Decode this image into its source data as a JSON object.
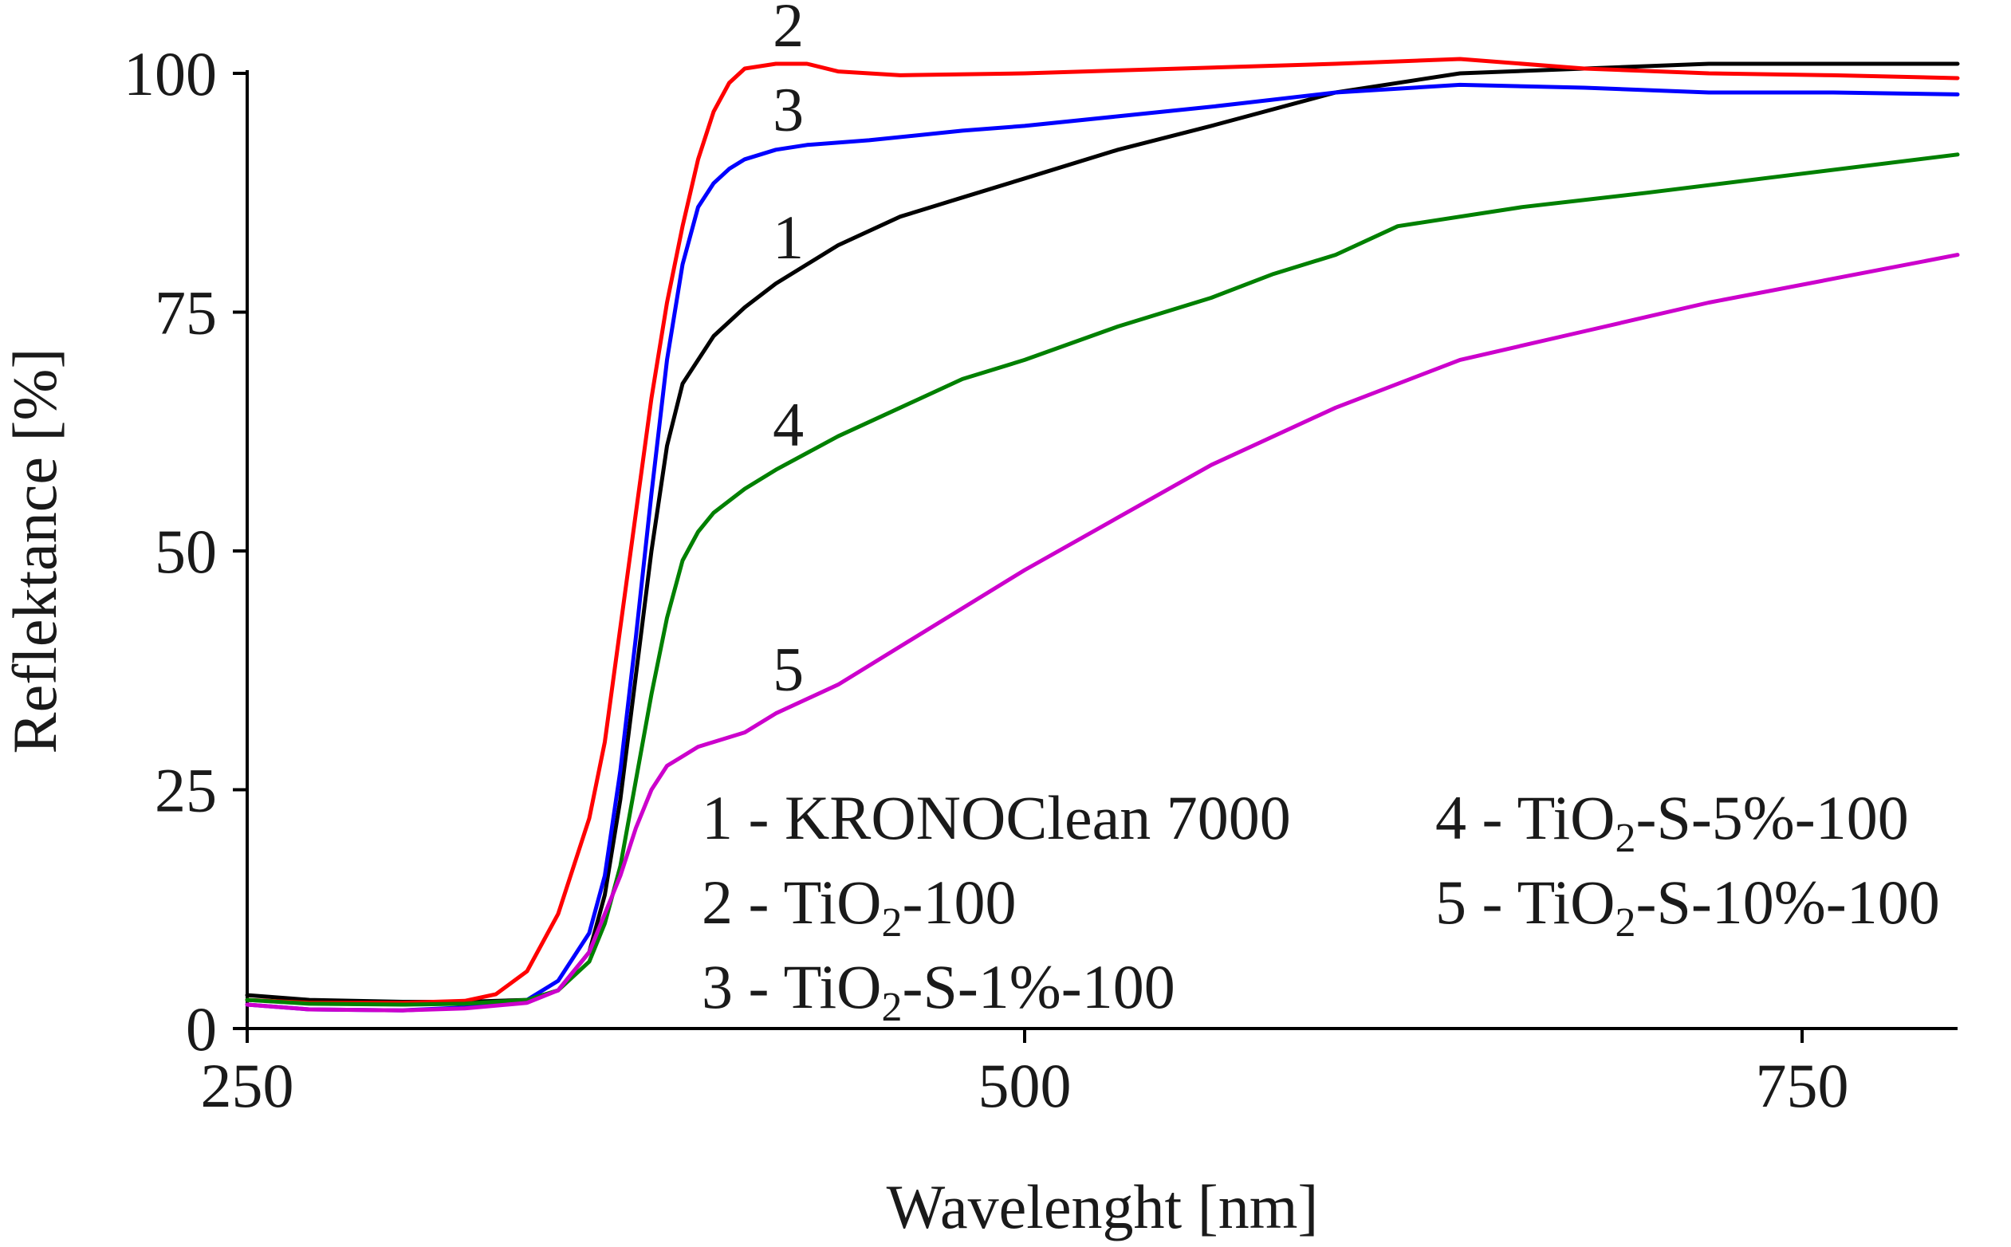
{
  "chart_data": {
    "type": "line",
    "title": "",
    "xlabel": "Wavelenght [nm]",
    "ylabel": "Reflektance  [%]",
    "xlim": [
      250,
      800
    ],
    "ylim": [
      0,
      100
    ],
    "xticks": [
      "250",
      "500",
      "750"
    ],
    "yticks": [
      "0",
      "25",
      "50",
      "75",
      "100"
    ],
    "grid": false,
    "series": [
      {
        "id": "1",
        "name": "KRONOClean 7000",
        "color": "#000000",
        "label_number": "1",
        "x": [
          250,
          270,
          300,
          320,
          340,
          350,
          360,
          365,
          370,
          375,
          380,
          385,
          390,
          395,
          400,
          410,
          420,
          430,
          440,
          460,
          480,
          500,
          530,
          560,
          600,
          640,
          680,
          720,
          760,
          800
        ],
        "y": [
          3.5,
          3.0,
          2.8,
          2.8,
          3.0,
          4.0,
          8.0,
          14.0,
          24.0,
          37.0,
          50.0,
          61.0,
          67.5,
          70.0,
          72.5,
          75.5,
          78.0,
          80.0,
          82.0,
          85.0,
          87.0,
          89.0,
          92.0,
          94.5,
          98.0,
          100.0,
          100.5,
          101.0,
          101.0,
          101.0
        ]
      },
      {
        "id": "2",
        "name": "TiO2-100",
        "color": "#ff0000",
        "label_number": "2",
        "x": [
          250,
          270,
          300,
          320,
          330,
          340,
          350,
          360,
          365,
          370,
          375,
          380,
          385,
          390,
          395,
          400,
          405,
          410,
          420,
          430,
          440,
          460,
          500,
          550,
          600,
          640,
          680,
          720,
          760,
          800
        ],
        "y": [
          3.0,
          2.7,
          2.7,
          2.9,
          3.6,
          6.0,
          12.0,
          22.0,
          30.0,
          42.0,
          54.0,
          66.0,
          76.0,
          84.0,
          91.0,
          96.0,
          99.0,
          100.5,
          101.0,
          101.0,
          100.2,
          99.8,
          100.0,
          100.5,
          101.0,
          101.5,
          100.5,
          100.0,
          99.8,
          99.5
        ]
      },
      {
        "id": "3",
        "name": "TiO2-S-1%-100",
        "color": "#0000ff",
        "label_number": "3",
        "x": [
          250,
          270,
          300,
          320,
          340,
          350,
          360,
          365,
          370,
          375,
          380,
          385,
          390,
          395,
          400,
          405,
          410,
          420,
          430,
          450,
          480,
          500,
          530,
          560,
          600,
          640,
          680,
          720,
          760,
          800
        ],
        "y": [
          2.5,
          2.0,
          1.9,
          2.2,
          3.0,
          5.0,
          10.0,
          16.0,
          27.0,
          41.0,
          56.0,
          70.0,
          80.0,
          86.0,
          88.5,
          90.0,
          91.0,
          92.0,
          92.5,
          93.0,
          94.0,
          94.5,
          95.5,
          96.5,
          98.0,
          98.8,
          98.5,
          98.0,
          98.0,
          97.8
        ]
      },
      {
        "id": "4",
        "name": "TiO2-S-5%-100",
        "color": "#008000",
        "label_number": "4",
        "x": [
          250,
          270,
          300,
          320,
          340,
          350,
          360,
          365,
          370,
          375,
          380,
          385,
          390,
          395,
          400,
          410,
          420,
          440,
          460,
          480,
          500,
          530,
          560,
          580,
          600,
          620,
          660,
          700,
          750,
          800
        ],
        "y": [
          3.0,
          2.6,
          2.5,
          2.6,
          3.0,
          4.0,
          7.0,
          11.0,
          17.0,
          26.0,
          35.0,
          43.0,
          49.0,
          52.0,
          54.0,
          56.5,
          58.5,
          62.0,
          65.0,
          68.0,
          70.0,
          73.5,
          76.5,
          79.0,
          81.0,
          84.0,
          86.0,
          87.5,
          89.5,
          91.5
        ]
      },
      {
        "id": "5",
        "name": "TiO2-S-10%-100",
        "color": "#cc00cc",
        "label_number": "5",
        "x": [
          250,
          270,
          300,
          320,
          340,
          350,
          360,
          365,
          370,
          375,
          380,
          385,
          390,
          395,
          400,
          410,
          420,
          440,
          460,
          480,
          500,
          530,
          560,
          600,
          640,
          680,
          720,
          760,
          800
        ],
        "y": [
          2.5,
          2.0,
          1.9,
          2.1,
          2.7,
          4.0,
          8.0,
          12.0,
          16.0,
          21.0,
          25.0,
          27.5,
          28.5,
          29.5,
          30.0,
          31.0,
          33.0,
          36.0,
          40.0,
          44.0,
          48.0,
          53.5,
          59.0,
          65.0,
          70.0,
          73.0,
          76.0,
          78.5,
          81.0
        ]
      }
    ],
    "curve_labels": [
      {
        "series": "2",
        "text": "2"
      },
      {
        "series": "3",
        "text": "3"
      },
      {
        "series": "1",
        "text": "1"
      },
      {
        "series": "4",
        "text": "4"
      },
      {
        "series": "5",
        "text": "5"
      }
    ],
    "legend": {
      "placement": "bottom-right",
      "entries": [
        {
          "prefix": "1 - KRONOClean 7000",
          "sub": "",
          "suffix": ""
        },
        {
          "prefix": "2 - TiO",
          "sub": "2",
          "suffix": "-100"
        },
        {
          "prefix": "3 - TiO",
          "sub": "2",
          "suffix": "-S-1%-100"
        },
        {
          "prefix": "4 - TiO",
          "sub": "2",
          "suffix": "-S-5%-100"
        },
        {
          "prefix": "5 - TiO",
          "sub": "2",
          "suffix": "-S-10%-100"
        }
      ]
    }
  }
}
